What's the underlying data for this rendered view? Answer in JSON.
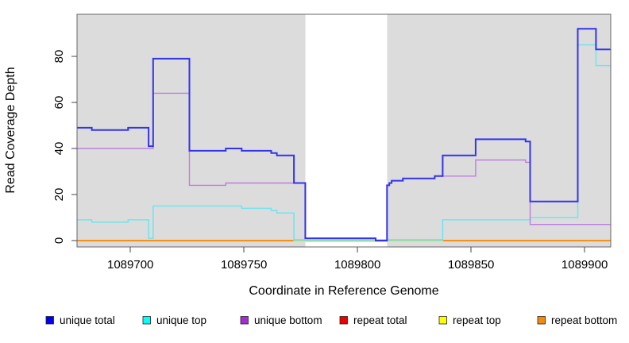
{
  "chart_data": {
    "type": "line",
    "step": true,
    "title": "",
    "xlabel": "Coordinate in Reference Genome",
    "ylabel": "Read Coverage Depth",
    "xlim": [
      1089676.5,
      1089911.5
    ],
    "ylim": [
      0,
      98
    ],
    "x_ticks": [
      1089700,
      1089750,
      1089800,
      1089850,
      1089900
    ],
    "y_ticks": [
      0,
      20,
      40,
      60,
      80
    ],
    "grid": "off",
    "plot_bg": "#DCDCDC",
    "outer_bg": "#FFFFFF",
    "gap_region": {
      "x_start": 1089777,
      "x_end": 1089813,
      "color": "#FFFFFF"
    },
    "zero_artifact": {
      "x_start": 1089772,
      "x_end": 1089837.5,
      "top_color": "#8FD48F",
      "bottom_color": "#E9E0A0"
    },
    "legend_position": "bottom",
    "series": [
      {
        "name": "unique total",
        "color": "#3333EE",
        "swatch_color": "#0000EE",
        "line_width": 2,
        "points": [
          [
            1089676.5,
            49
          ],
          [
            1089683,
            48
          ],
          [
            1089699,
            49
          ],
          [
            1089708,
            41
          ],
          [
            1089710,
            79
          ],
          [
            1089726,
            39
          ],
          [
            1089742,
            40
          ],
          [
            1089749,
            39
          ],
          [
            1089762,
            38
          ],
          [
            1089764.5,
            37
          ],
          [
            1089772,
            25
          ],
          [
            1089777,
            1
          ],
          [
            1089808,
            0
          ],
          [
            1089813,
            24
          ],
          [
            1089814,
            25
          ],
          [
            1089815,
            26
          ],
          [
            1089820,
            27
          ],
          [
            1089834,
            28
          ],
          [
            1089837.5,
            37
          ],
          [
            1089852,
            44
          ],
          [
            1089874,
            43
          ],
          [
            1089876,
            17
          ],
          [
            1089897,
            92
          ],
          [
            1089905,
            83
          ]
        ]
      },
      {
        "name": "unique top",
        "color": "#6FE4F0",
        "swatch_color": "#00FFFF",
        "line_width": 1.5,
        "points": [
          [
            1089676.5,
            9
          ],
          [
            1089683,
            8
          ],
          [
            1089699,
            9
          ],
          [
            1089708,
            1
          ],
          [
            1089710,
            15
          ],
          [
            1089749,
            14
          ],
          [
            1089762,
            13
          ],
          [
            1089764.5,
            12
          ],
          [
            1089772,
            0
          ],
          [
            1089837.5,
            9
          ],
          [
            1089876,
            10
          ],
          [
            1089897,
            85
          ],
          [
            1089905,
            76
          ]
        ]
      },
      {
        "name": "unique bottom",
        "color": "#BC7EDE",
        "swatch_color": "#A52BD4",
        "line_width": 1.4,
        "points": [
          [
            1089676.5,
            40
          ],
          [
            1089710,
            64
          ],
          [
            1089726,
            24
          ],
          [
            1089742,
            25
          ],
          [
            1089777,
            1
          ],
          [
            1089808,
            0
          ],
          [
            1089813,
            24
          ],
          [
            1089814,
            25
          ],
          [
            1089815,
            26
          ],
          [
            1089820,
            27
          ],
          [
            1089834,
            28
          ],
          [
            1089852,
            35
          ],
          [
            1089874,
            34
          ],
          [
            1089876,
            7
          ]
        ]
      },
      {
        "name": "repeat total",
        "color": "#EE2222",
        "swatch_color": "#EE0000",
        "line_width": 1.5,
        "points": [
          [
            1089676.5,
            0
          ]
        ]
      },
      {
        "name": "repeat top",
        "color": "#F0F040",
        "swatch_color": "#FFFF00",
        "line_width": 1.5,
        "points": [
          [
            1089676.5,
            0
          ]
        ]
      },
      {
        "name": "repeat bottom",
        "color": "#FC9016",
        "swatch_color": "#F28A0E",
        "line_width": 2,
        "points": [
          [
            1089676.5,
            0
          ]
        ]
      }
    ]
  }
}
